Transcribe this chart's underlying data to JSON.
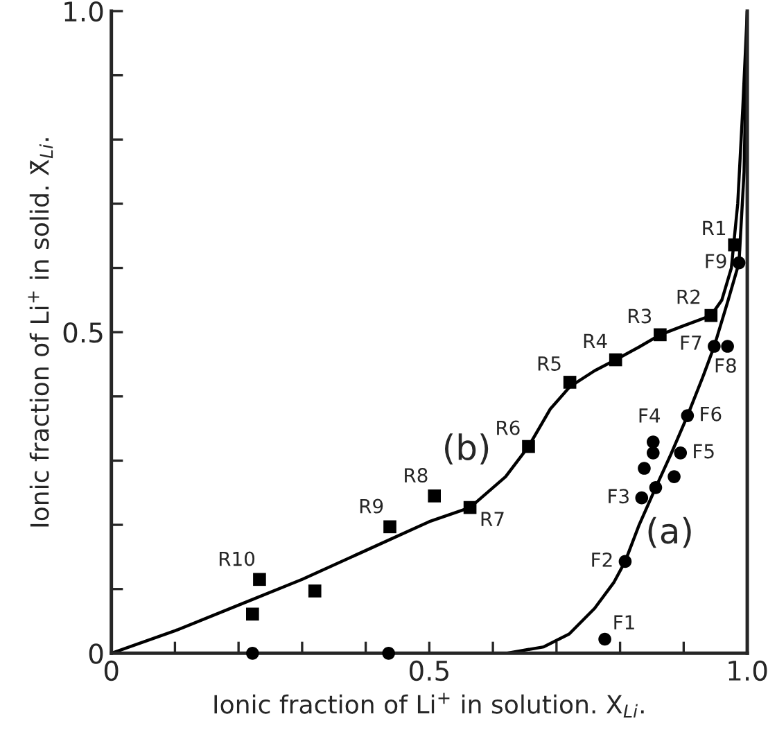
{
  "chart_data": {
    "type": "scatter",
    "xlabel": "Ionic fraction of Li$^{+}$ in solution. X$_{Li}$.",
    "ylabel": "Ionic fraction of Li$^{+}$ in solid. X̄$_{Li}$.",
    "xlim": [
      0,
      1.0
    ],
    "ylim": [
      0,
      1.0
    ],
    "xticks": [
      0,
      {
        "value": 0.1,
        "label": null
      },
      {
        "value": 0.2,
        "label": null
      },
      {
        "value": 0.3,
        "label": null
      },
      {
        "value": 0.4,
        "label": null
      },
      0.5,
      {
        "value": 0.6,
        "label": null
      },
      {
        "value": 0.7,
        "label": null
      },
      {
        "value": 0.8,
        "label": null
      },
      {
        "value": 0.9,
        "label": null
      },
      {
        "value": 1.0,
        "label": "1.0"
      }
    ],
    "yticks": [
      0,
      {
        "value": 0.1,
        "label": null
      },
      {
        "value": 0.2,
        "label": null
      },
      {
        "value": 0.3,
        "label": null
      },
      {
        "value": 0.4,
        "label": null
      },
      0.5,
      {
        "value": 0.6,
        "label": null
      },
      {
        "value": 0.7,
        "label": null
      },
      {
        "value": 0.8,
        "label": null
      },
      {
        "value": 0.9,
        "label": null
      },
      {
        "value": 1.0,
        "label": "1.0"
      }
    ],
    "series": [
      {
        "type": "line",
        "color": "#000000",
        "marker": "none",
        "x": [
          0,
          0.1,
          0.2,
          0.3,
          0.4,
          0.5,
          0.564,
          0.62,
          0.656,
          0.69,
          0.721,
          0.76,
          0.793,
          0.83,
          0.863,
          0.9,
          0.943,
          0.96,
          0.975,
          0.985,
          0.993,
          1.0
        ],
        "values": [
          0,
          0.035,
          0.075,
          0.115,
          0.16,
          0.205,
          0.227,
          0.275,
          0.322,
          0.38,
          0.415,
          0.44,
          0.457,
          0.477,
          0.496,
          0.51,
          0.526,
          0.55,
          0.6,
          0.7,
          0.85,
          1.0
        ]
      },
      {
        "type": "line",
        "color": "#000000",
        "marker": "none",
        "x": [
          0.621,
          0.68,
          0.72,
          0.76,
          0.79,
          0.808,
          0.83,
          0.856,
          0.88,
          0.906,
          0.93,
          0.948,
          0.97,
          0.987,
          0.995,
          1.0
        ],
        "values": [
          0,
          0.01,
          0.03,
          0.07,
          0.11,
          0.143,
          0.2,
          0.258,
          0.31,
          0.37,
          0.43,
          0.478,
          0.55,
          0.608,
          0.75,
          1.0
        ]
      },
      {
        "color": "#000000",
        "marker": "square",
        "x": [
          0.98,
          0.943,
          0.863,
          0.793,
          0.721,
          0.656,
          0.564,
          0.508,
          0.438,
          0.233,
          0.222,
          0.32
        ],
        "values": [
          0.636,
          0.526,
          0.496,
          0.457,
          0.422,
          0.322,
          0.227,
          0.245,
          0.197,
          0.115,
          0.061,
          0.097
        ]
      },
      {
        "color": "#000000",
        "marker": "circle",
        "x": [
          0.776,
          0.808,
          0.834,
          0.852,
          0.895,
          0.906,
          0.948,
          0.969,
          0.987,
          0.856,
          0.838,
          0.852,
          0.885,
          0.222,
          0.436
        ],
        "values": [
          0.022,
          0.143,
          0.242,
          0.329,
          0.312,
          0.37,
          0.478,
          0.478,
          0.608,
          0.258,
          0.288,
          0.312,
          0.275,
          0,
          0
        ]
      }
    ],
    "annotations": [
      {
        "text": "R1",
        "x": 0.98,
        "y": 0.636
      },
      {
        "text": "R2",
        "x": 0.943,
        "y": 0.526
      },
      {
        "text": "R3",
        "x": 0.863,
        "y": 0.496
      },
      {
        "text": "R4",
        "x": 0.793,
        "y": 0.457
      },
      {
        "text": "R5",
        "x": 0.721,
        "y": 0.422
      },
      {
        "text": "R6",
        "x": 0.656,
        "y": 0.322
      },
      {
        "text": "R7",
        "x": 0.564,
        "y": 0.227
      },
      {
        "text": "R8",
        "x": 0.508,
        "y": 0.245
      },
      {
        "text": "R9",
        "x": 0.438,
        "y": 0.197
      },
      {
        "text": "R10",
        "x": 0.233,
        "y": 0.115
      },
      {
        "text": "F1",
        "x": 0.776,
        "y": 0.022
      },
      {
        "text": "F2",
        "x": 0.808,
        "y": 0.143
      },
      {
        "text": "F3",
        "x": 0.834,
        "y": 0.242
      },
      {
        "text": "F4",
        "x": 0.852,
        "y": 0.329
      },
      {
        "text": "F5",
        "x": 0.895,
        "y": 0.312
      },
      {
        "text": "F6",
        "x": 0.906,
        "y": 0.37
      },
      {
        "text": "F7",
        "x": 0.948,
        "y": 0.478
      },
      {
        "text": "F8",
        "x": 0.969,
        "y": 0.478
      },
      {
        "text": "F9",
        "x": 0.987,
        "y": 0.608
      },
      "(b)",
      "(a)"
    ]
  }
}
